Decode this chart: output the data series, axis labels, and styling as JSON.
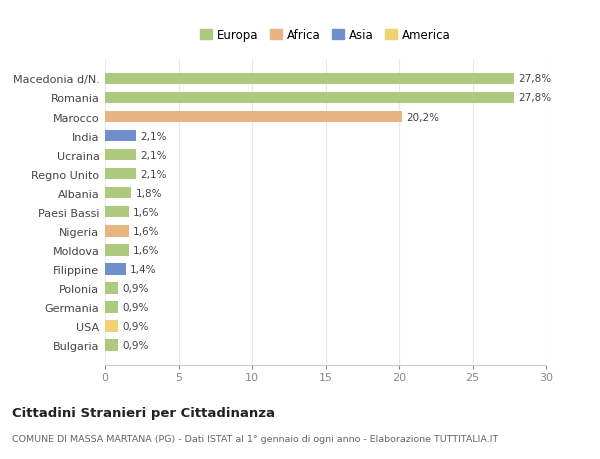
{
  "categories": [
    "Bulgaria",
    "USA",
    "Germania",
    "Polonia",
    "Filippine",
    "Moldova",
    "Nigeria",
    "Paesi Bassi",
    "Albania",
    "Regno Unito",
    "Ucraina",
    "India",
    "Marocco",
    "Romania",
    "Macedonia d/N."
  ],
  "values": [
    0.9,
    0.9,
    0.9,
    0.9,
    1.4,
    1.6,
    1.6,
    1.6,
    1.8,
    2.1,
    2.1,
    2.1,
    20.2,
    27.8,
    27.8
  ],
  "continents": [
    "Europa",
    "America",
    "Europa",
    "Europa",
    "Asia",
    "Europa",
    "Africa",
    "Europa",
    "Europa",
    "Europa",
    "Europa",
    "Asia",
    "Africa",
    "Europa",
    "Europa"
  ],
  "labels": [
    "0,9%",
    "0,9%",
    "0,9%",
    "0,9%",
    "1,4%",
    "1,6%",
    "1,6%",
    "1,6%",
    "1,8%",
    "2,1%",
    "2,1%",
    "2,1%",
    "20,2%",
    "27,8%",
    "27,8%"
  ],
  "colors": {
    "Europa": "#adc97e",
    "Africa": "#e8b482",
    "Asia": "#6e8fcc",
    "America": "#f0d070"
  },
  "title": "Cittadini Stranieri per Cittadinanza",
  "subtitle": "COMUNE DI MASSA MARTANA (PG) - Dati ISTAT al 1° gennaio di ogni anno - Elaborazione TUTTITALIA.IT",
  "xlim": [
    0,
    30
  ],
  "xticks": [
    0,
    5,
    10,
    15,
    20,
    25,
    30
  ],
  "background_color": "#ffffff",
  "grid_color": "#e8e8e8",
  "bar_height": 0.6
}
